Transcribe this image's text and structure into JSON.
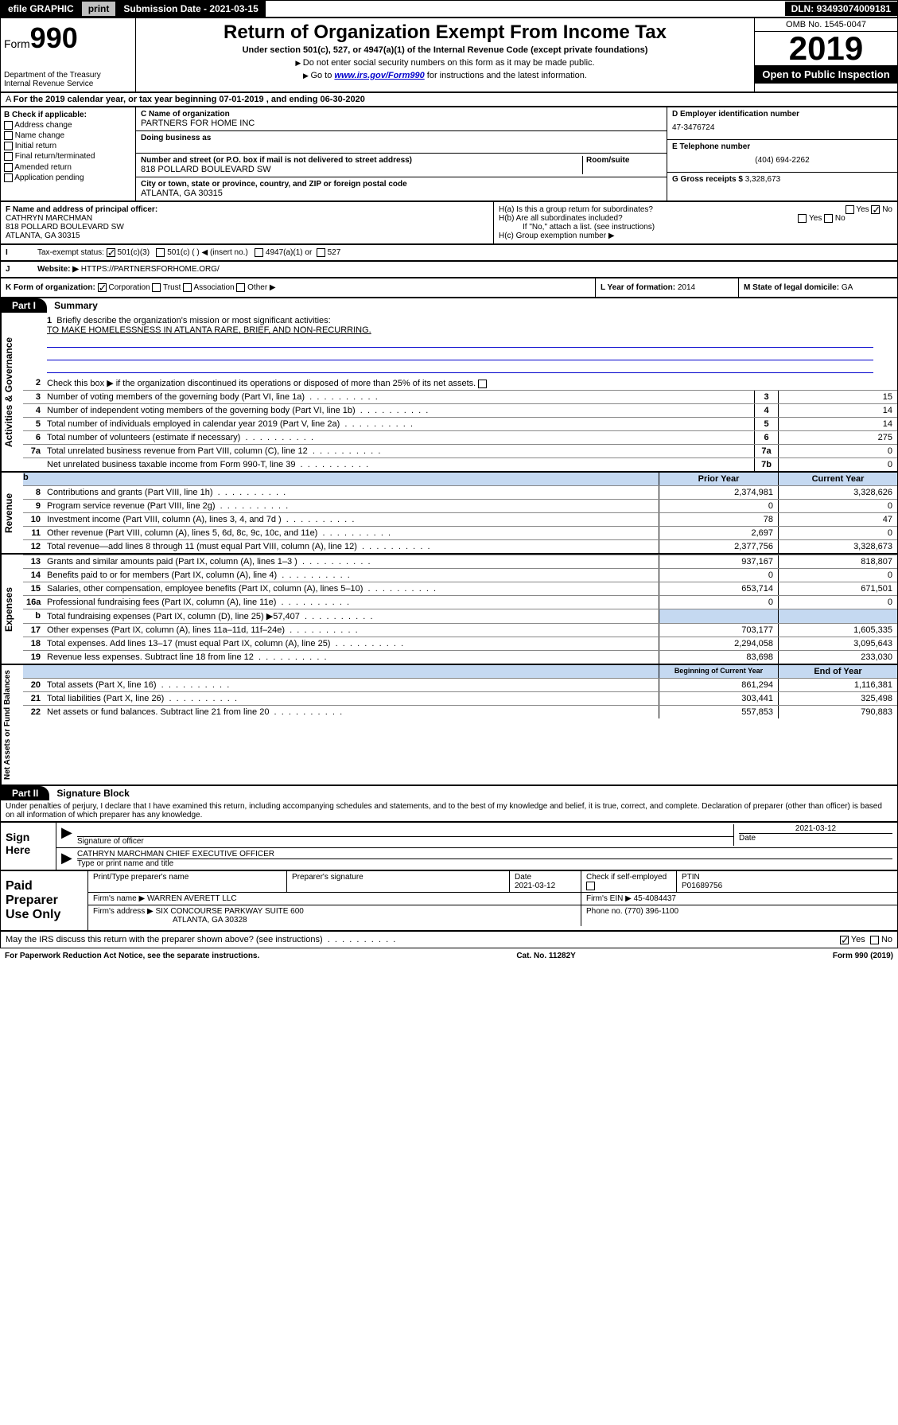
{
  "topbar": {
    "efile": "efile GRAPHIC",
    "print": "print",
    "subdate_lbl": "Submission Date - ",
    "subdate": "2021-03-15",
    "dln_lbl": "DLN: ",
    "dln": "93493074009181"
  },
  "header": {
    "form_lbl": "Form",
    "form_num": "990",
    "dept": "Department of the Treasury\nInternal Revenue Service",
    "title": "Return of Organization Exempt From Income Tax",
    "subtitle": "Under section 501(c), 527, or 4947(a)(1) of the Internal Revenue Code (except private foundations)",
    "note1": "Do not enter social security numbers on this form as it may be made public.",
    "note2_pre": "Go to ",
    "note2_link": "www.irs.gov/Form990",
    "note2_post": " for instructions and the latest information.",
    "omb": "OMB No. 1545-0047",
    "year": "2019",
    "opi": "Open to Public Inspection"
  },
  "line_a": {
    "text": "For the 2019 calendar year, or tax year beginning 07-01-2019    , and ending 06-30-2020"
  },
  "sec_b": {
    "hdr": "B Check if applicable:",
    "items": [
      "Address change",
      "Name change",
      "Initial return",
      "Final return/terminated",
      "Amended return",
      "Application pending"
    ]
  },
  "sec_c": {
    "name_lbl": "C Name of organization",
    "name": "PARTNERS FOR HOME INC",
    "dba_lbl": "Doing business as",
    "addr_lbl": "Number and street (or P.O. box if mail is not delivered to street address)",
    "room_lbl": "Room/suite",
    "addr": "818 POLLARD BOULEVARD SW",
    "city_lbl": "City or town, state or province, country, and ZIP or foreign postal code",
    "city": "ATLANTA, GA  30315"
  },
  "sec_d": {
    "ein_lbl": "D Employer identification number",
    "ein": "47-3476724",
    "tel_lbl": "E Telephone number",
    "tel": "(404) 694-2262",
    "gross_lbl": "G Gross receipts $ ",
    "gross": "3,328,673"
  },
  "sec_f": {
    "lbl": "F  Name and address of principal officer:",
    "name": "CATHRYN MARCHMAN",
    "addr1": "818 POLLARD BOULEVARD SW",
    "addr2": "ATLANTA, GA  30315"
  },
  "sec_h": {
    "ha": "H(a)  Is this a group return for subordinates?",
    "hb": "H(b)  Are all subordinates included?",
    "hb_note": "If \"No,\" attach a list. (see instructions)",
    "hc": "H(c)  Group exemption number ▶",
    "yes": "Yes",
    "no": "No"
  },
  "sec_i": {
    "lbl": "Tax-exempt status:",
    "opts": [
      "501(c)(3)",
      "501(c) (  ) ◀ (insert no.)",
      "4947(a)(1) or",
      "527"
    ]
  },
  "sec_j": {
    "lbl": "Website: ▶",
    "val": "HTTPS://PARTNERSFORHOME.ORG/"
  },
  "sec_k": {
    "lbl": "K Form of organization:",
    "opts": [
      "Corporation",
      "Trust",
      "Association",
      "Other ▶"
    ],
    "l_lbl": "L Year of formation: ",
    "l_val": "2014",
    "m_lbl": "M State of legal domicile: ",
    "m_val": "GA"
  },
  "part1": {
    "hdr": "Part I",
    "title": "Summary",
    "line1_lbl": "Briefly describe the organization's mission or most significant activities:",
    "line1_val": "TO MAKE HOMELESSNESS IN ATLANTA RARE, BRIEF, AND NON-RECURRING.",
    "line2": "Check this box ▶       if the organization discontinued its operations or disposed of more than 25% of its net assets.",
    "lines_gov": [
      {
        "n": "3",
        "t": "Number of voting members of the governing body (Part VI, line 1a)",
        "b": "3",
        "v": "15"
      },
      {
        "n": "4",
        "t": "Number of independent voting members of the governing body (Part VI, line 1b)",
        "b": "4",
        "v": "14"
      },
      {
        "n": "5",
        "t": "Total number of individuals employed in calendar year 2019 (Part V, line 2a)",
        "b": "5",
        "v": "14"
      },
      {
        "n": "6",
        "t": "Total number of volunteers (estimate if necessary)",
        "b": "6",
        "v": "275"
      },
      {
        "n": "7a",
        "t": "Total unrelated business revenue from Part VIII, column (C), line 12",
        "b": "7a",
        "v": "0"
      },
      {
        "n": "",
        "t": "Net unrelated business taxable income from Form 990-T, line 39",
        "b": "7b",
        "v": "0"
      }
    ],
    "prior_hdr": "Prior Year",
    "curr_hdr": "Current Year",
    "lines_rev": [
      {
        "n": "8",
        "t": "Contributions and grants (Part VIII, line 1h)",
        "p": "2,374,981",
        "c": "3,328,626"
      },
      {
        "n": "9",
        "t": "Program service revenue (Part VIII, line 2g)",
        "p": "0",
        "c": "0"
      },
      {
        "n": "10",
        "t": "Investment income (Part VIII, column (A), lines 3, 4, and 7d )",
        "p": "78",
        "c": "47"
      },
      {
        "n": "11",
        "t": "Other revenue (Part VIII, column (A), lines 5, 6d, 8c, 9c, 10c, and 11e)",
        "p": "2,697",
        "c": "0"
      },
      {
        "n": "12",
        "t": "Total revenue—add lines 8 through 11 (must equal Part VIII, column (A), line 12)",
        "p": "2,377,756",
        "c": "3,328,673"
      }
    ],
    "lines_exp": [
      {
        "n": "13",
        "t": "Grants and similar amounts paid (Part IX, column (A), lines 1–3 )",
        "p": "937,167",
        "c": "818,807"
      },
      {
        "n": "14",
        "t": "Benefits paid to or for members (Part IX, column (A), line 4)",
        "p": "0",
        "c": "0"
      },
      {
        "n": "15",
        "t": "Salaries, other compensation, employee benefits (Part IX, column (A), lines 5–10)",
        "p": "653,714",
        "c": "671,501"
      },
      {
        "n": "16a",
        "t": "Professional fundraising fees (Part IX, column (A), line 11e)",
        "p": "0",
        "c": "0"
      },
      {
        "n": "b",
        "t": "Total fundraising expenses (Part IX, column (D), line 25) ▶57,407",
        "p": "",
        "c": "",
        "blue": true
      },
      {
        "n": "17",
        "t": "Other expenses (Part IX, column (A), lines 11a–11d, 11f–24e)",
        "p": "703,177",
        "c": "1,605,335"
      },
      {
        "n": "18",
        "t": "Total expenses. Add lines 13–17 (must equal Part IX, column (A), line 25)",
        "p": "2,294,058",
        "c": "3,095,643"
      },
      {
        "n": "19",
        "t": "Revenue less expenses. Subtract line 18 from line 12",
        "p": "83,698",
        "c": "233,030"
      }
    ],
    "beg_hdr": "Beginning of Current Year",
    "end_hdr": "End of Year",
    "lines_net": [
      {
        "n": "20",
        "t": "Total assets (Part X, line 16)",
        "p": "861,294",
        "c": "1,116,381"
      },
      {
        "n": "21",
        "t": "Total liabilities (Part X, line 26)",
        "p": "303,441",
        "c": "325,498"
      },
      {
        "n": "22",
        "t": "Net assets or fund balances. Subtract line 21 from line 20",
        "p": "557,853",
        "c": "790,883"
      }
    ],
    "side_gov": "Activities & Governance",
    "side_rev": "Revenue",
    "side_exp": "Expenses",
    "side_net": "Net Assets or Fund Balances"
  },
  "part2": {
    "hdr": "Part II",
    "title": "Signature Block",
    "perjury": "Under penalties of perjury, I declare that I have examined this return, including accompanying schedules and statements, and to the best of my knowledge and belief, it is true, correct, and complete. Declaration of preparer (other than officer) is based on all information of which preparer has any knowledge.",
    "sign_here": "Sign Here",
    "sig_officer": "Signature of officer",
    "sig_date": "2021-03-12",
    "date_lbl": "Date",
    "officer_name": "CATHRYN MARCHMAN  CHIEF EXECUTIVE OFFICER",
    "type_name": "Type or print name and title"
  },
  "prep": {
    "hdr": "Paid Preparer Use Only",
    "col1": "Print/Type preparer's name",
    "col2": "Preparer's signature",
    "col3": "Date",
    "col3v": "2021-03-12",
    "col4": "Check        if self-employed",
    "col5": "PTIN",
    "col5v": "P01689756",
    "firm_name_lbl": "Firm's name      ▶",
    "firm_name": "WARREN AVERETT LLC",
    "firm_ein_lbl": "Firm's EIN ▶",
    "firm_ein": "45-4084437",
    "firm_addr_lbl": "Firm's address ▶",
    "firm_addr": "SIX CONCOURSE PARKWAY SUITE 600",
    "firm_city": "ATLANTA, GA  30328",
    "phone_lbl": "Phone no. ",
    "phone": "(770) 396-1100"
  },
  "discuss": {
    "text": "May the IRS discuss this return with the preparer shown above? (see instructions)",
    "yes": "Yes",
    "no": "No"
  },
  "footer": {
    "left": "For Paperwork Reduction Act Notice, see the separate instructions.",
    "mid": "Cat. No. 11282Y",
    "right": "Form 990 (2019)"
  },
  "colors": {
    "link": "#0000cc",
    "blue_fill": "#c5d9f1"
  }
}
